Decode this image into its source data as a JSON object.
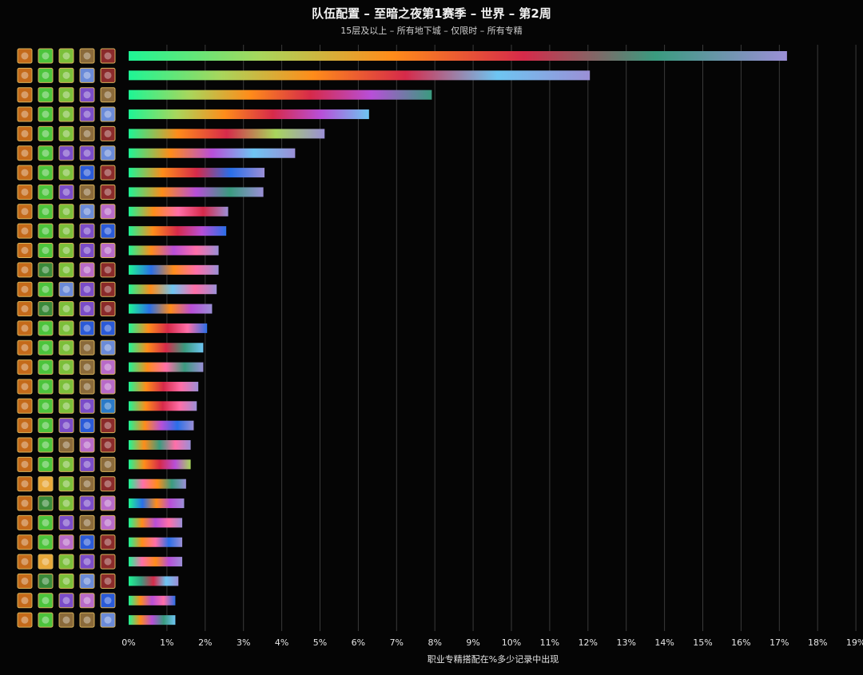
{
  "chart_data": {
    "type": "bar",
    "orientation": "horizontal",
    "title": "队伍配置 – 至暗之夜第1赛季 – 世界 – 第2周",
    "subtitle": "15层及以上 – 所有地下城 – 仅限时 – 所有专精",
    "xlabel": "职业专精搭配在%多少记录中出现",
    "ylabel": "",
    "xlim": [
      0,
      19
    ],
    "x_tick_labels": [
      "0%",
      "1%",
      "2%",
      "3%",
      "4%",
      "5%",
      "6%",
      "7%",
      "8%",
      "9%",
      "10%",
      "11%",
      "12%",
      "13%",
      "14%",
      "15%",
      "16%",
      "17%",
      "18%",
      "19%"
    ],
    "grid": "vertical",
    "legend": "none",
    "spec_palette": {
      "druid": "#ffbe6e",
      "heal": "#3df59a",
      "dk": "#a8d65c",
      "dh": "#b84fd8",
      "hunter": "#ff8c1a",
      "mage": "#6ec5f2",
      "monk": "#1fe68c",
      "priest": "#ffffff",
      "shaman": "#2a6fe8",
      "warlock": "#9b8fd6",
      "warrior": "#d64a3a",
      "paladin": "#ff6fa8",
      "evoker": "#3a9b7f",
      "rogue": "#e8d84a"
    },
    "icon_palette": {
      "feral-icon": "#c46a1a",
      "heal-leaf-icon": "#4cc43c",
      "fel-skull-icon": "#7bbf3a",
      "havoc-icon": "#7a4cc8",
      "bow-icon": "#8a6a3a",
      "wand-icon": "#6a8ad8",
      "blood-icon": "#8a2a2a",
      "lightning-icon": "#2a5ad8",
      "arcane-icon": "#b86ac8",
      "light-icon": "#e8a83a",
      "twin-blades-icon": "#3a8a3a",
      "water-icon": "#2a7ac8"
    },
    "rows": [
      {
        "value": 17.2,
        "icons": [
          "feral-icon",
          "heal-leaf-icon",
          "fel-skull-icon",
          "bow-icon",
          "blood-icon"
        ],
        "colors": [
          "#1ef595",
          "#a8d65c",
          "#ff8c1a",
          "#d62a4a",
          "#3a9b7f",
          "#9b8fd6"
        ]
      },
      {
        "value": 12.05,
        "icons": [
          "feral-icon",
          "heal-leaf-icon",
          "fel-skull-icon",
          "wand-icon",
          "blood-icon"
        ],
        "colors": [
          "#1ef595",
          "#a8d65c",
          "#ff8c1a",
          "#d62a4a",
          "#6ec5f2",
          "#9b8fd6"
        ]
      },
      {
        "value": 7.92,
        "icons": [
          "feral-icon",
          "heal-leaf-icon",
          "fel-skull-icon",
          "havoc-icon",
          "bow-icon"
        ],
        "colors": [
          "#1ef595",
          "#a8d65c",
          "#ff8c1a",
          "#d62a4a",
          "#b84fd8",
          "#3a9b7f"
        ]
      },
      {
        "value": 6.28,
        "icons": [
          "feral-icon",
          "heal-leaf-icon",
          "fel-skull-icon",
          "havoc-icon",
          "wand-icon"
        ],
        "colors": [
          "#1ef595",
          "#a8d65c",
          "#ff8c1a",
          "#d62a4a",
          "#b84fd8",
          "#6ec5f2"
        ]
      },
      {
        "value": 5.12,
        "icons": [
          "feral-icon",
          "heal-leaf-icon",
          "fel-skull-icon",
          "bow-icon",
          "blood-icon"
        ],
        "colors": [
          "#1ef595",
          "#ff8c1a",
          "#d62a4a",
          "#a8d65c",
          "#9b8fd6"
        ]
      },
      {
        "value": 4.35,
        "icons": [
          "feral-icon",
          "heal-leaf-icon",
          "havoc-icon",
          "havoc-icon",
          "wand-icon"
        ],
        "colors": [
          "#1ef595",
          "#ff8c1a",
          "#b84fd8",
          "#6ec5f2",
          "#9b8fd6"
        ]
      },
      {
        "value": 3.55,
        "icons": [
          "feral-icon",
          "heal-leaf-icon",
          "fel-skull-icon",
          "lightning-icon",
          "blood-icon"
        ],
        "colors": [
          "#1ef595",
          "#ff8c1a",
          "#d62a4a",
          "#2a6fe8",
          "#9b8fd6"
        ]
      },
      {
        "value": 3.52,
        "icons": [
          "feral-icon",
          "heal-leaf-icon",
          "havoc-icon",
          "bow-icon",
          "blood-icon"
        ],
        "colors": [
          "#1ef595",
          "#ff8c1a",
          "#b84fd8",
          "#3a9b7f",
          "#9b8fd6"
        ]
      },
      {
        "value": 2.6,
        "icons": [
          "feral-icon",
          "heal-leaf-icon",
          "fel-skull-icon",
          "wand-icon",
          "arcane-icon"
        ],
        "colors": [
          "#1ef595",
          "#ff8c1a",
          "#ff6fa8",
          "#d62a4a",
          "#9b8fd6"
        ]
      },
      {
        "value": 2.55,
        "icons": [
          "feral-icon",
          "heal-leaf-icon",
          "fel-skull-icon",
          "havoc-icon",
          "lightning-icon"
        ],
        "colors": [
          "#1ef595",
          "#ff8c1a",
          "#d62a4a",
          "#b84fd8",
          "#2a6fe8"
        ]
      },
      {
        "value": 2.35,
        "icons": [
          "feral-icon",
          "heal-leaf-icon",
          "fel-skull-icon",
          "havoc-icon",
          "arcane-icon"
        ],
        "colors": [
          "#1ef595",
          "#ff8c1a",
          "#b84fd8",
          "#ff6fa8",
          "#9b8fd6"
        ]
      },
      {
        "value": 2.35,
        "icons": [
          "feral-icon",
          "twin-blades-icon",
          "fel-skull-icon",
          "arcane-icon",
          "blood-icon"
        ],
        "colors": [
          "#1ef595",
          "#2a6fe8",
          "#ff8c1a",
          "#ff6fa8",
          "#9b8fd6"
        ]
      },
      {
        "value": 2.3,
        "icons": [
          "feral-icon",
          "heal-leaf-icon",
          "wand-icon",
          "havoc-icon",
          "blood-icon"
        ],
        "colors": [
          "#1ef595",
          "#ff8c1a",
          "#6ec5f2",
          "#ff6fa8",
          "#9b8fd6"
        ]
      },
      {
        "value": 2.18,
        "icons": [
          "feral-icon",
          "twin-blades-icon",
          "fel-skull-icon",
          "havoc-icon",
          "blood-icon"
        ],
        "colors": [
          "#1ef595",
          "#2a6fe8",
          "#ff8c1a",
          "#b84fd8",
          "#9b8fd6"
        ]
      },
      {
        "value": 2.05,
        "icons": [
          "feral-icon",
          "heal-leaf-icon",
          "fel-skull-icon",
          "lightning-icon",
          "lightning-icon"
        ],
        "colors": [
          "#1ef595",
          "#ff8c1a",
          "#d62a4a",
          "#ff6fa8",
          "#2a6fe8"
        ]
      },
      {
        "value": 1.95,
        "icons": [
          "feral-icon",
          "heal-leaf-icon",
          "fel-skull-icon",
          "bow-icon",
          "wand-icon"
        ],
        "colors": [
          "#1ef595",
          "#ff8c1a",
          "#d62a4a",
          "#3a9b7f",
          "#6ec5f2"
        ]
      },
      {
        "value": 1.95,
        "icons": [
          "feral-icon",
          "heal-leaf-icon",
          "fel-skull-icon",
          "bow-icon",
          "arcane-icon"
        ],
        "colors": [
          "#1ef595",
          "#ff8c1a",
          "#ff6fa8",
          "#3a9b7f",
          "#9b8fd6"
        ]
      },
      {
        "value": 1.82,
        "icons": [
          "feral-icon",
          "heal-leaf-icon",
          "fel-skull-icon",
          "bow-icon",
          "arcane-icon"
        ],
        "colors": [
          "#1ef595",
          "#ff8c1a",
          "#d62a4a",
          "#ff6fa8",
          "#9b8fd6"
        ]
      },
      {
        "value": 1.78,
        "icons": [
          "feral-icon",
          "heal-leaf-icon",
          "fel-skull-icon",
          "havoc-icon",
          "water-icon"
        ],
        "colors": [
          "#1ef595",
          "#ff8c1a",
          "#d62a4a",
          "#ff6fa8",
          "#9b8fd6"
        ]
      },
      {
        "value": 1.7,
        "icons": [
          "feral-icon",
          "heal-leaf-icon",
          "havoc-icon",
          "lightning-icon",
          "blood-icon"
        ],
        "colors": [
          "#1ef595",
          "#ff8c1a",
          "#b84fd8",
          "#2a6fe8",
          "#9b8fd6"
        ]
      },
      {
        "value": 1.62,
        "icons": [
          "feral-icon",
          "heal-leaf-icon",
          "bow-icon",
          "arcane-icon",
          "blood-icon"
        ],
        "colors": [
          "#1ef595",
          "#ff8c1a",
          "#3a9b7f",
          "#ff6fa8",
          "#9b8fd6"
        ]
      },
      {
        "value": 1.62,
        "icons": [
          "feral-icon",
          "heal-leaf-icon",
          "fel-skull-icon",
          "havoc-icon",
          "bow-icon"
        ],
        "colors": [
          "#1ef595",
          "#ff8c1a",
          "#d62a4a",
          "#b84fd8",
          "#a8d65c"
        ]
      },
      {
        "value": 1.5,
        "icons": [
          "feral-icon",
          "light-icon",
          "fel-skull-icon",
          "bow-icon",
          "blood-icon"
        ],
        "colors": [
          "#1ef595",
          "#ff6fa8",
          "#ff8c1a",
          "#3a9b7f",
          "#9b8fd6"
        ]
      },
      {
        "value": 1.45,
        "icons": [
          "feral-icon",
          "twin-blades-icon",
          "fel-skull-icon",
          "havoc-icon",
          "arcane-icon"
        ],
        "colors": [
          "#1ef595",
          "#2a6fe8",
          "#ff8c1a",
          "#b84fd8",
          "#9b8fd6"
        ]
      },
      {
        "value": 1.4,
        "icons": [
          "feral-icon",
          "heal-leaf-icon",
          "havoc-icon",
          "bow-icon",
          "arcane-icon"
        ],
        "colors": [
          "#1ef595",
          "#ff8c1a",
          "#b84fd8",
          "#ff6fa8",
          "#9b8fd6"
        ]
      },
      {
        "value": 1.4,
        "icons": [
          "feral-icon",
          "heal-leaf-icon",
          "arcane-icon",
          "lightning-icon",
          "blood-icon"
        ],
        "colors": [
          "#1ef595",
          "#ff8c1a",
          "#ff6fa8",
          "#2a6fe8",
          "#9b8fd6"
        ]
      },
      {
        "value": 1.4,
        "icons": [
          "feral-icon",
          "light-icon",
          "fel-skull-icon",
          "havoc-icon",
          "blood-icon"
        ],
        "colors": [
          "#1ef595",
          "#ff6fa8",
          "#ff8c1a",
          "#b84fd8",
          "#9b8fd6"
        ]
      },
      {
        "value": 1.3,
        "icons": [
          "feral-icon",
          "twin-blades-icon",
          "fel-skull-icon",
          "wand-icon",
          "blood-icon"
        ],
        "colors": [
          "#1ef595",
          "#3a9b7f",
          "#d62a4a",
          "#6ec5f2",
          "#9b8fd6"
        ]
      },
      {
        "value": 1.22,
        "icons": [
          "feral-icon",
          "heal-leaf-icon",
          "havoc-icon",
          "arcane-icon",
          "lightning-icon"
        ],
        "colors": [
          "#1ef595",
          "#ff8c1a",
          "#b84fd8",
          "#ff6fa8",
          "#2a6fe8"
        ]
      },
      {
        "value": 1.22,
        "icons": [
          "feral-icon",
          "heal-leaf-icon",
          "bow-icon",
          "bow-icon",
          "wand-icon"
        ],
        "colors": [
          "#1ef595",
          "#ff8c1a",
          "#b84fd8",
          "#3a9b7f",
          "#6ec5f2"
        ]
      }
    ]
  }
}
